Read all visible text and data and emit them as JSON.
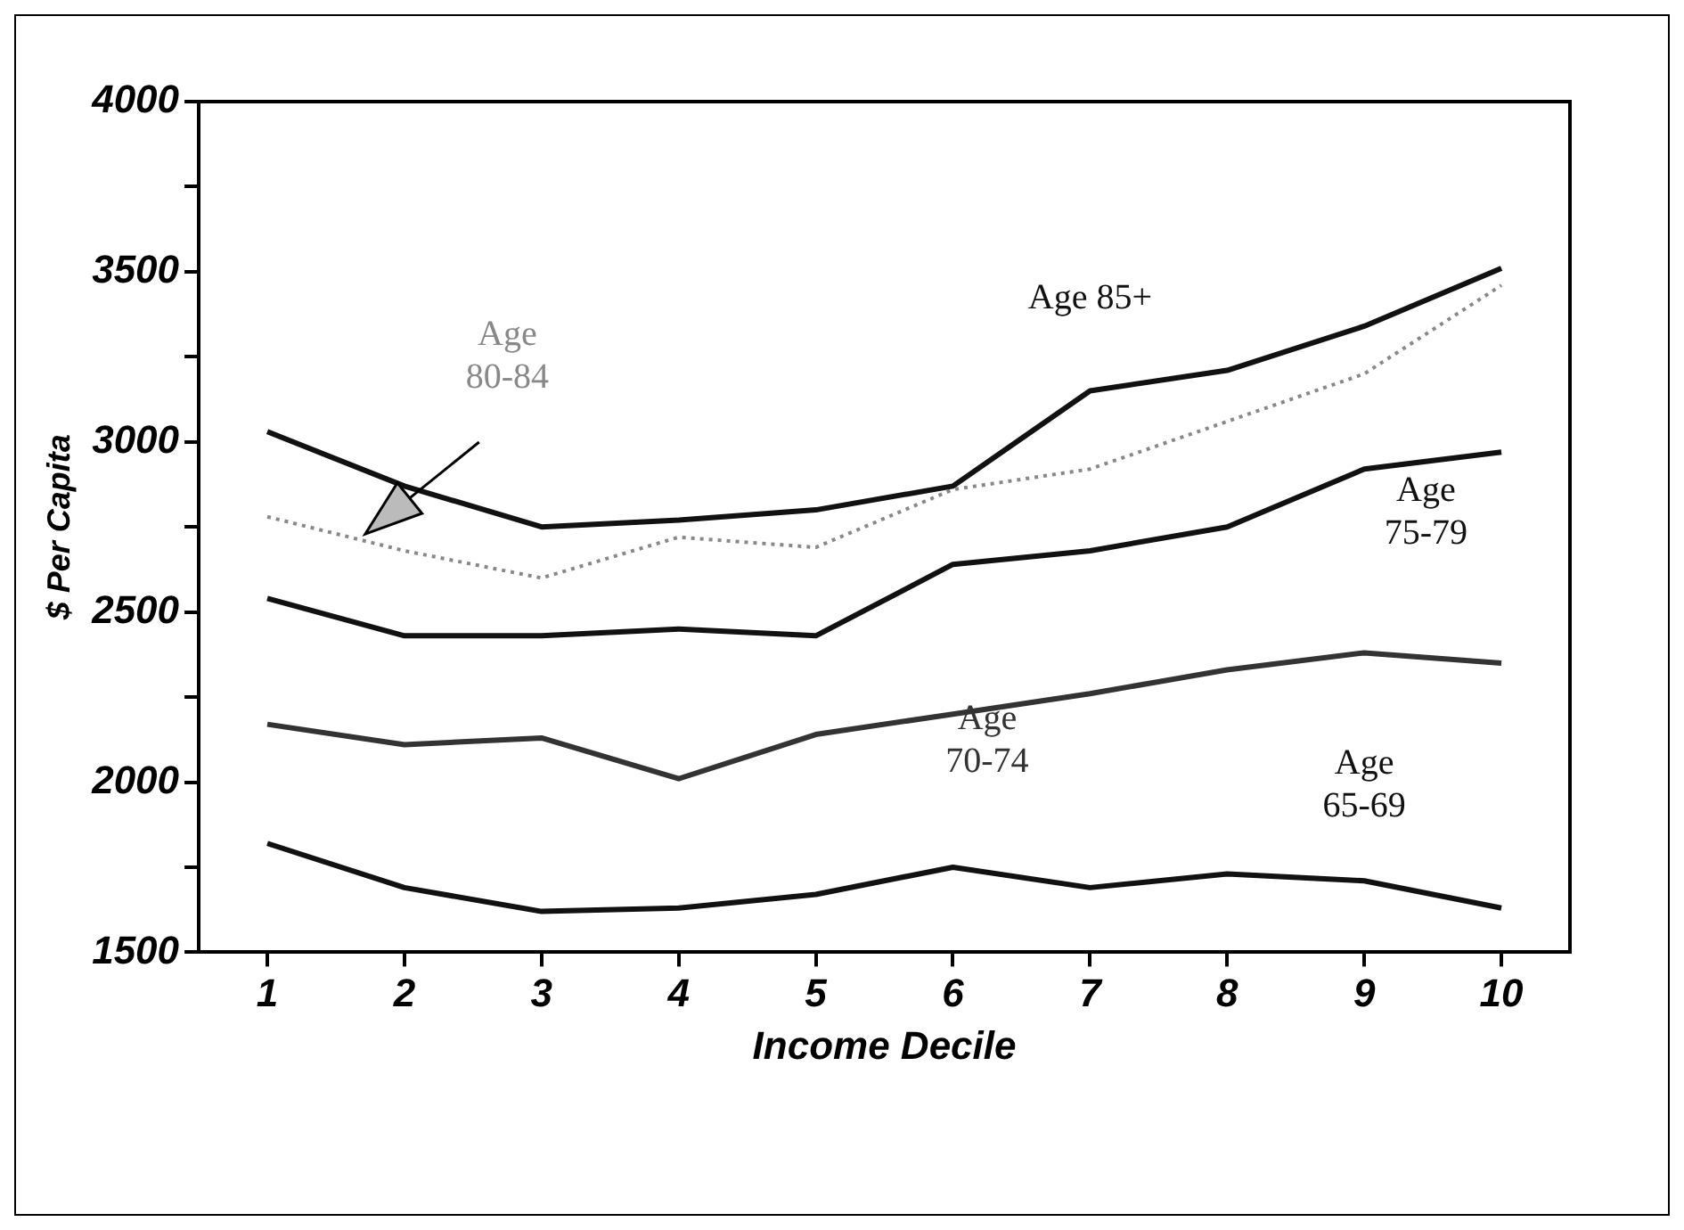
{
  "chart_data": {
    "type": "line",
    "xlabel": "Income Decile",
    "ylabel": "$ Per Capita",
    "x": [
      1,
      2,
      3,
      4,
      5,
      6,
      7,
      8,
      9,
      10
    ],
    "series": [
      {
        "name": "Age 85+",
        "color": "#111111",
        "line_style": "solid",
        "values": [
          3030,
          2870,
          2750,
          2770,
          2800,
          2870,
          3150,
          3210,
          3340,
          3510
        ]
      },
      {
        "name": "Age 80-84",
        "color": "#888888",
        "line_style": "dotted",
        "values": [
          2780,
          2680,
          2600,
          2720,
          2690,
          2860,
          2920,
          3060,
          3200,
          3460
        ]
      },
      {
        "name": "Age 75-79",
        "color": "#111111",
        "line_style": "solid",
        "values": [
          2540,
          2430,
          2430,
          2450,
          2430,
          2640,
          2680,
          2750,
          2920,
          2970
        ]
      },
      {
        "name": "Age 70-74",
        "color": "#333333",
        "line_style": "solid",
        "values": [
          2170,
          2110,
          2130,
          2010,
          2140,
          2200,
          2260,
          2330,
          2380,
          2350
        ]
      },
      {
        "name": "Age 65-69",
        "color": "#111111",
        "line_style": "solid",
        "values": [
          1820,
          1690,
          1620,
          1630,
          1670,
          1750,
          1690,
          1730,
          1710,
          1630
        ]
      }
    ],
    "xlim": [
      0.5,
      10.5
    ],
    "xticks": [
      1,
      2,
      3,
      4,
      5,
      6,
      7,
      8,
      9,
      10
    ],
    "ylim": [
      1500,
      4000
    ],
    "yticks": [
      1500,
      {
        "value": 1750,
        "label": null
      },
      2000,
      {
        "value": 2250,
        "label": null
      },
      2500,
      {
        "value": 2750,
        "label": null
      },
      3000,
      {
        "value": 3250,
        "label": null
      },
      3500,
      {
        "value": 3750,
        "label": null
      },
      4000
    ],
    "grid": false,
    "legend": false,
    "marker": "none"
  }
}
